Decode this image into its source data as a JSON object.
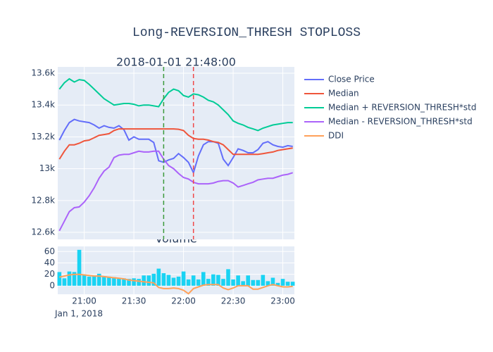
{
  "chart_data": [
    {
      "type": "line",
      "title": "Long-REVERSION_THRESH STOPLOSS",
      "subtitle": "2018-01-01 21:48:00",
      "x": [
        "20:45",
        "20:48",
        "20:51",
        "20:54",
        "20:57",
        "21:00",
        "21:03",
        "21:06",
        "21:09",
        "21:12",
        "21:15",
        "21:18",
        "21:21",
        "21:24",
        "21:27",
        "21:30",
        "21:33",
        "21:36",
        "21:39",
        "21:42",
        "21:45",
        "21:48",
        "21:51",
        "21:54",
        "21:57",
        "22:00",
        "22:03",
        "22:06",
        "22:09",
        "22:12",
        "22:15",
        "22:18",
        "22:21",
        "22:24",
        "22:27",
        "22:30",
        "22:33",
        "22:36",
        "22:39",
        "22:42",
        "22:45",
        "22:48",
        "22:51",
        "22:54",
        "22:57",
        "23:00",
        "23:03",
        "23:06"
      ],
      "series": [
        {
          "name": "Close Price",
          "color": "#636efa",
          "values": [
            13180,
            13240,
            13290,
            13310,
            13300,
            13295,
            13290,
            13275,
            13255,
            13270,
            13260,
            13255,
            13270,
            13245,
            13180,
            13200,
            13185,
            13185,
            13185,
            13165,
            13050,
            13040,
            13055,
            13065,
            13095,
            13070,
            13040,
            12975,
            13080,
            13150,
            13170,
            13170,
            13160,
            13060,
            13020,
            13070,
            13125,
            13115,
            13100,
            13100,
            13120,
            13160,
            13170,
            13150,
            13140,
            13135,
            13145,
            13140
          ]
        },
        {
          "name": "Median",
          "color": "#ef553b",
          "values": [
            13060,
            13110,
            13150,
            13150,
            13160,
            13175,
            13180,
            13195,
            13210,
            13215,
            13220,
            13240,
            13250,
            13250,
            13250,
            13250,
            13250,
            13250,
            13250,
            13250,
            13250,
            13250,
            13250,
            13250,
            13248,
            13240,
            13210,
            13190,
            13185,
            13185,
            13180,
            13170,
            13165,
            13150,
            13120,
            13090,
            13090,
            13090,
            13090,
            13090,
            13090,
            13095,
            13100,
            13105,
            13115,
            13120,
            13125,
            13130
          ]
        },
        {
          "name": "Median + REVERSION_THRESH*std",
          "color": "#00cc96",
          "values": [
            13500,
            13540,
            13565,
            13545,
            13560,
            13555,
            13530,
            13500,
            13470,
            13440,
            13420,
            13400,
            13405,
            13410,
            13410,
            13405,
            13395,
            13400,
            13400,
            13395,
            13390,
            13440,
            13480,
            13500,
            13490,
            13460,
            13450,
            13470,
            13465,
            13450,
            13430,
            13420,
            13400,
            13370,
            13340,
            13300,
            13285,
            13275,
            13260,
            13250,
            13240,
            13255,
            13265,
            13275,
            13280,
            13285,
            13290,
            13290
          ]
        },
        {
          "name": "Median - REVERSION_THRESH*std",
          "color": "#ab63fa",
          "values": [
            12610,
            12670,
            12730,
            12755,
            12760,
            12790,
            12830,
            12880,
            12940,
            12985,
            13010,
            13070,
            13085,
            13090,
            13090,
            13100,
            13110,
            13105,
            13105,
            13110,
            13110,
            13060,
            13020,
            13000,
            12970,
            12945,
            12935,
            12915,
            12905,
            12905,
            12905,
            12910,
            12920,
            12925,
            12925,
            12910,
            12885,
            12895,
            12905,
            12915,
            12930,
            12935,
            12940,
            12940,
            12950,
            12960,
            12965,
            12975
          ]
        }
      ],
      "markers": [
        {
          "x": "21:48",
          "color": "#3c9a3c"
        },
        {
          "x": "22:06",
          "color": "#f04848"
        }
      ],
      "xlim": [
        "20:44",
        "23:07"
      ],
      "xticks": [
        "21:00",
        "21:30",
        "22:00",
        "22:30",
        "23:00"
      ],
      "ylim": [
        12556,
        13640
      ],
      "yticks": [
        {
          "value": 12600,
          "label": "12.6k"
        },
        {
          "value": 12800,
          "label": "12.8k"
        },
        {
          "value": 13000,
          "label": "13k"
        },
        {
          "value": 13200,
          "label": "13.2k"
        },
        {
          "value": 13400,
          "label": "13.4k"
        },
        {
          "value": 13600,
          "label": "13.6k"
        }
      ],
      "grid": true
    },
    {
      "type": "combo",
      "title": "Volume",
      "xlabel": "Jan 1, 2018",
      "x": [
        "20:45",
        "20:48",
        "20:51",
        "20:54",
        "20:57",
        "21:00",
        "21:03",
        "21:06",
        "21:09",
        "21:12",
        "21:15",
        "21:18",
        "21:21",
        "21:24",
        "21:27",
        "21:30",
        "21:33",
        "21:36",
        "21:39",
        "21:42",
        "21:45",
        "21:48",
        "21:51",
        "21:54",
        "21:57",
        "22:00",
        "22:03",
        "22:06",
        "22:09",
        "22:12",
        "22:15",
        "22:18",
        "22:21",
        "22:24",
        "22:27",
        "22:30",
        "22:33",
        "22:36",
        "22:39",
        "22:42",
        "22:45",
        "22:48",
        "22:51",
        "22:54",
        "22:57",
        "23:00",
        "23:03",
        "23:06"
      ],
      "series": [
        {
          "type": "bar",
          "color": "#19d3f3",
          "values": [
            24,
            13,
            25,
            24,
            63,
            20,
            16,
            17,
            21,
            17,
            16,
            15,
            14,
            13,
            12,
            13,
            12,
            18,
            18,
            21,
            30,
            22,
            19,
            14,
            16,
            25,
            11,
            18,
            11,
            24,
            12,
            20,
            19,
            12,
            29,
            11,
            18,
            8,
            18,
            10,
            10,
            19,
            8,
            14,
            5,
            12,
            7,
            7
          ]
        },
        {
          "type": "line",
          "name": "DDI",
          "color": "#ffa15a",
          "values": [
            15,
            17,
            19,
            20,
            20,
            19,
            18,
            17,
            17,
            16,
            15,
            14,
            13,
            12,
            10,
            9,
            8,
            7,
            6,
            5,
            -3,
            -5,
            -5,
            -4,
            -5,
            -8,
            -14,
            -5,
            -2,
            1,
            2,
            2,
            2,
            -4,
            -7,
            -4,
            0,
            0,
            0,
            -6,
            -6,
            -3,
            0,
            2,
            0,
            -2,
            -2,
            -1
          ]
        }
      ],
      "xlim": [
        "20:44",
        "23:07"
      ],
      "xticks": [
        "21:00",
        "21:30",
        "22:00",
        "22:30",
        "23:00"
      ],
      "ylim": [
        -15,
        69
      ],
      "yticks": [
        0,
        20,
        40,
        60
      ],
      "grid": true
    }
  ]
}
